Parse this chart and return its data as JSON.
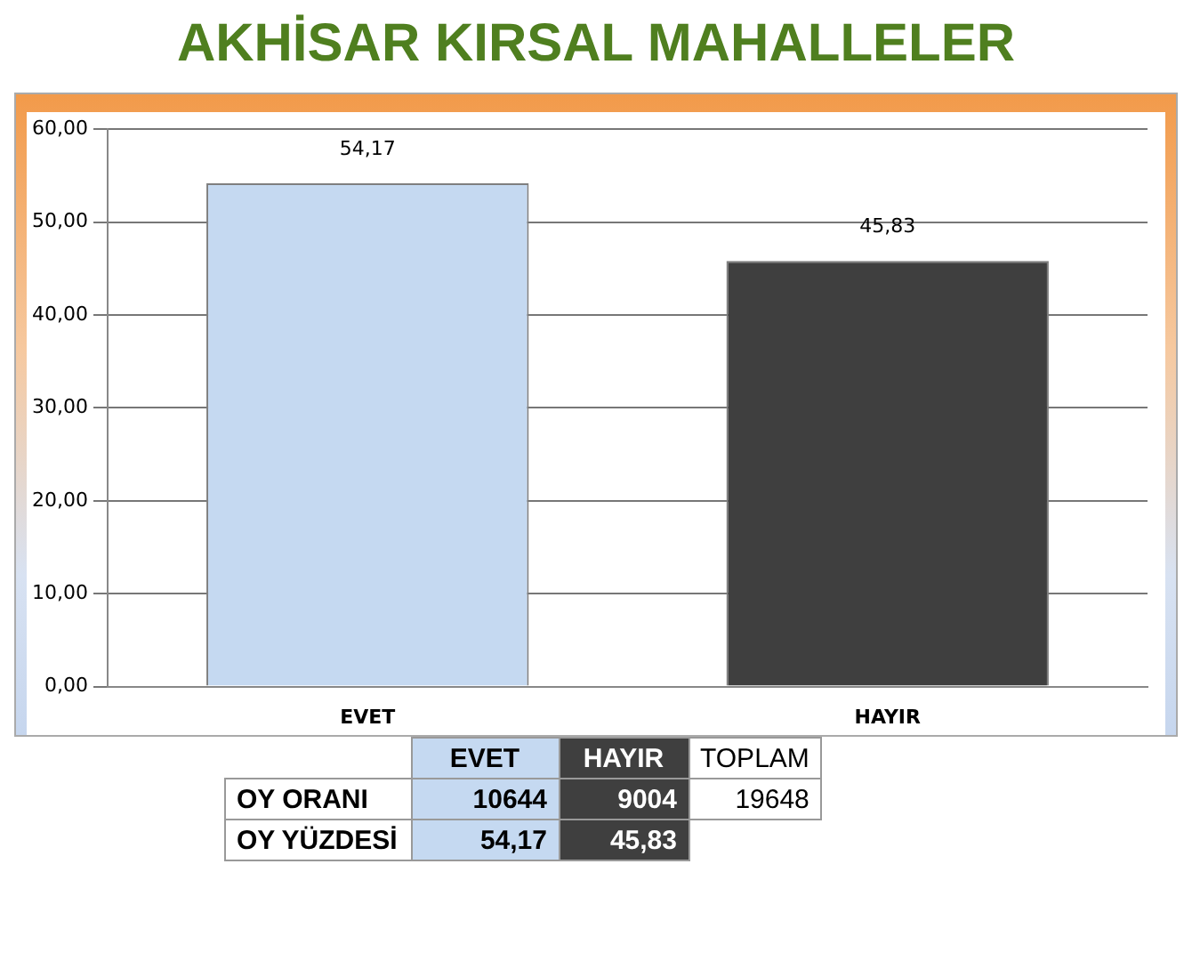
{
  "chart_data": {
    "type": "bar",
    "title": "AKHİSAR KIRSAL MAHALLELER",
    "categories": [
      "EVET",
      "HAYIR"
    ],
    "series": [
      {
        "values": [
          54.17,
          45.83
        ],
        "value_labels": [
          "54,17",
          "45,83"
        ],
        "colors": [
          "#c5d9f1",
          "#3f3f3f"
        ]
      }
    ],
    "ylim": [
      0,
      60
    ],
    "yticks": [
      {
        "value": 0,
        "label": "0,00"
      },
      {
        "value": 10,
        "label": "10,00"
      },
      {
        "value": 20,
        "label": "20,00"
      },
      {
        "value": 30,
        "label": "30,00"
      },
      {
        "value": 40,
        "label": "40,00"
      },
      {
        "value": 50,
        "label": "50,00"
      },
      {
        "value": 60,
        "label": "60,00"
      }
    ],
    "grid": "y",
    "legend": false,
    "annotations": [
      "TOPLAM",
      "OY ORANI",
      "10644",
      "9004",
      "19648",
      "OY YÜZDESİ"
    ]
  }
}
